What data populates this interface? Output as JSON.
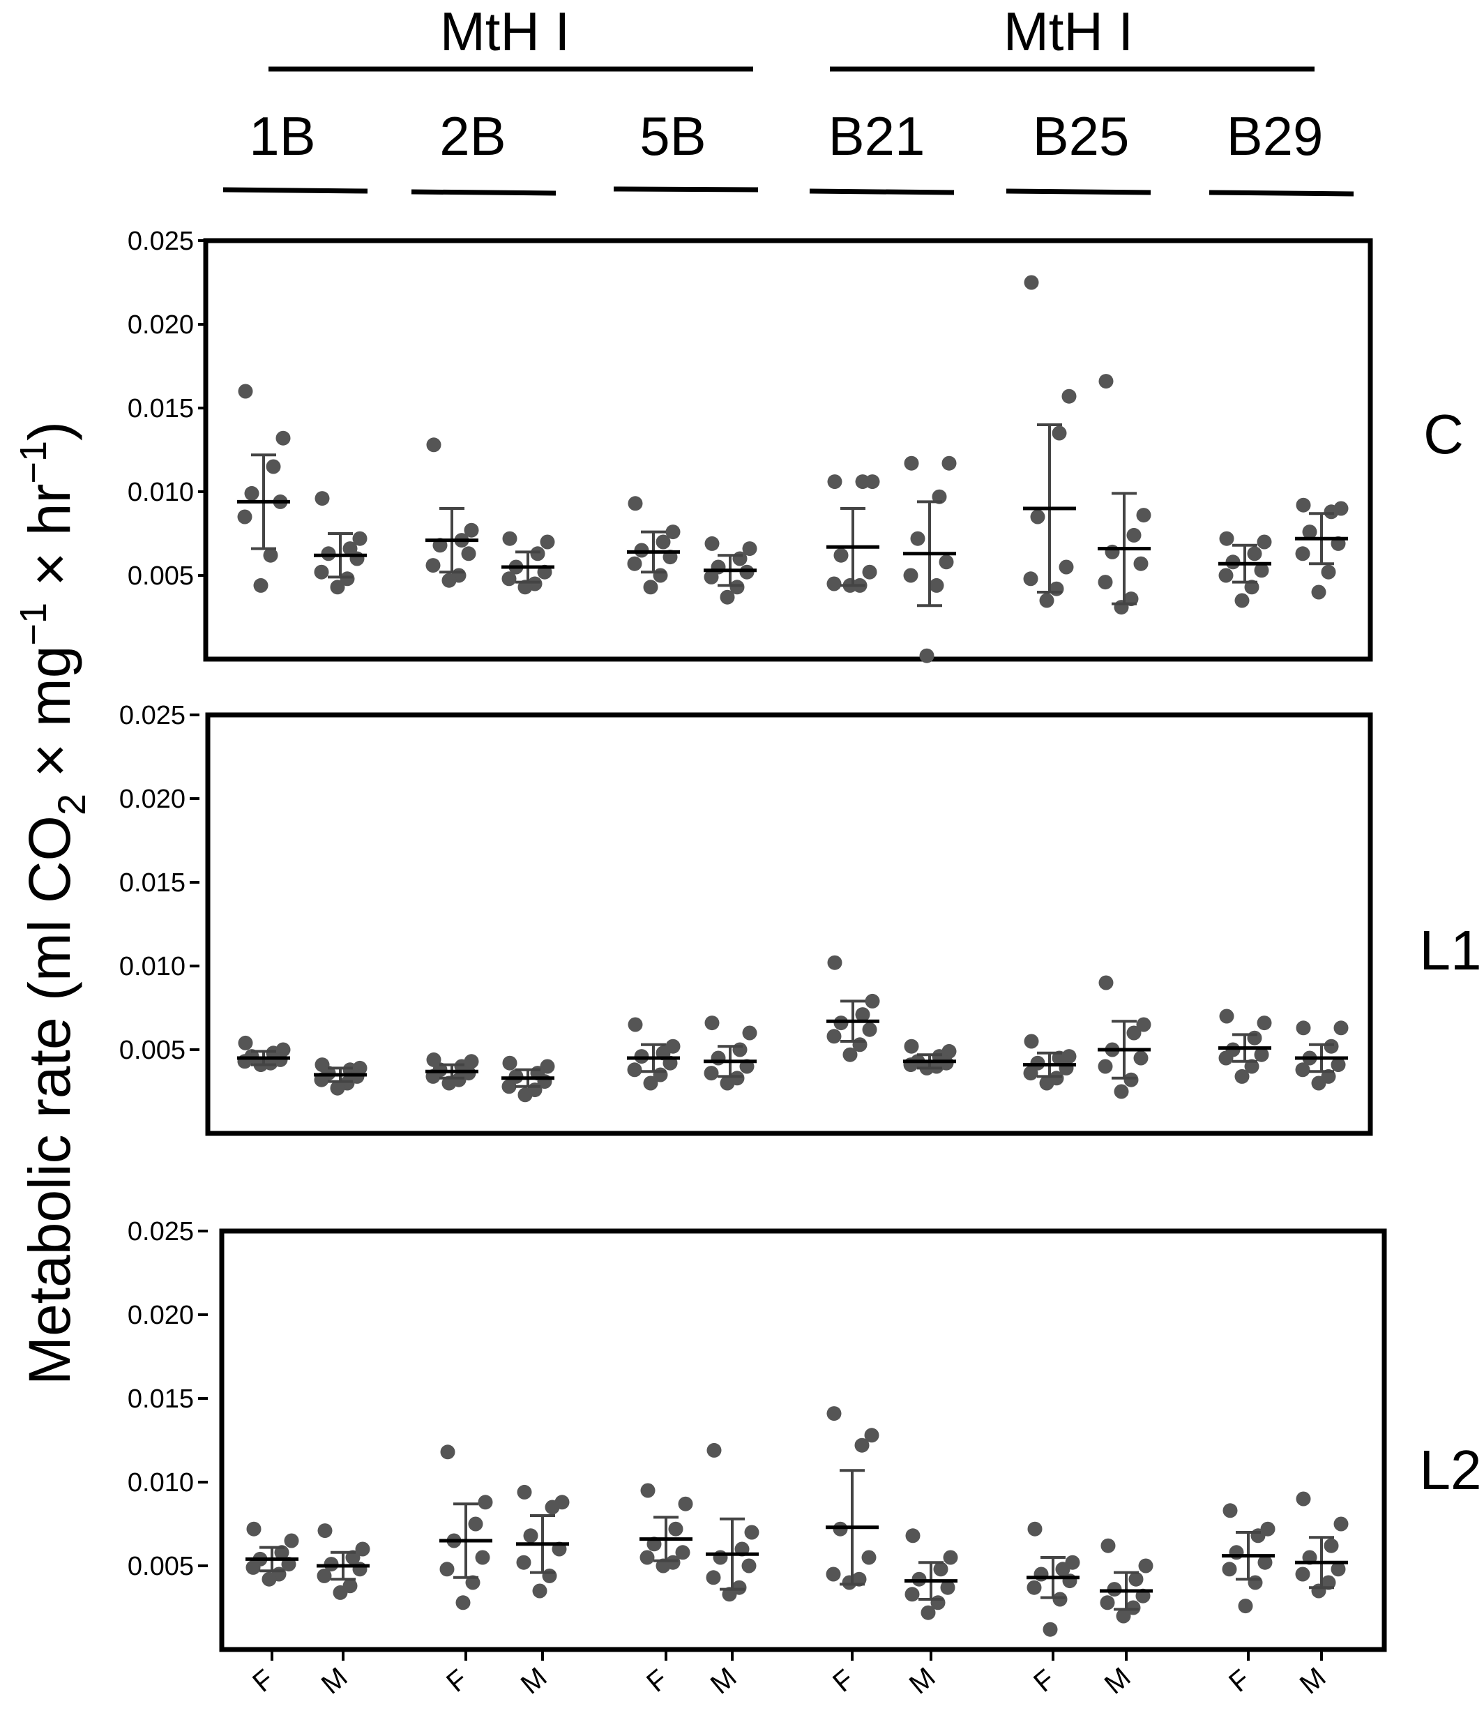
{
  "figure": {
    "ylabel_text": "Metabolic rate (ml CO",
    "ylabel_sub2": "2",
    "ylabel_mid": " × mg",
    "ylabel_sup1": "−1",
    "ylabel_hr": " × hr",
    "ylabel_sup2": "−1",
    "ylabel_close": ")"
  },
  "header": {
    "groups": [
      {
        "label": "MtH I",
        "lines": [
          "1B",
          "2B",
          "5B"
        ]
      },
      {
        "label": "MtH I",
        "lines": [
          "B21",
          "B25",
          "B29"
        ]
      }
    ]
  },
  "colors": {
    "points": "#555555",
    "bars": "#444444",
    "frame": "#000000"
  },
  "chart_data": [
    {
      "type": "scatter",
      "panel_label": "C",
      "ylim": [
        0,
        0.025
      ],
      "yticks": [
        "0.005",
        "0.010",
        "0.015",
        "0.020",
        "0.025"
      ],
      "x_categories": [
        "F",
        "M",
        "F",
        "M",
        "F",
        "M",
        "F",
        "M",
        "F",
        "M",
        "F",
        "M"
      ],
      "series": [
        {
          "line": "1B",
          "sex": "F",
          "mean": 0.0094,
          "sd_low": 0.0066,
          "sd_high": 0.0122,
          "values": [
            0.016,
            0.0132,
            0.0115,
            0.0099,
            0.0094,
            0.0085,
            0.0062,
            0.0044
          ]
        },
        {
          "line": "1B",
          "sex": "M",
          "mean": 0.0062,
          "sd_low": 0.0049,
          "sd_high": 0.0075,
          "values": [
            0.0096,
            0.0072,
            0.0066,
            0.0063,
            0.006,
            0.0052,
            0.0048,
            0.0043
          ]
        },
        {
          "line": "2B",
          "sex": "F",
          "mean": 0.0071,
          "sd_low": 0.0052,
          "sd_high": 0.009,
          "values": [
            0.0128,
            0.0077,
            0.0071,
            0.0068,
            0.0063,
            0.0056,
            0.005,
            0.0047
          ]
        },
        {
          "line": "2B",
          "sex": "M",
          "mean": 0.0055,
          "sd_low": 0.0046,
          "sd_high": 0.0064,
          "values": [
            0.0072,
            0.007,
            0.0063,
            0.0055,
            0.0052,
            0.0048,
            0.0045,
            0.0043
          ]
        },
        {
          "line": "5B",
          "sex": "F",
          "mean": 0.0064,
          "sd_low": 0.0052,
          "sd_high": 0.0076,
          "values": [
            0.0093,
            0.0076,
            0.007,
            0.0065,
            0.0061,
            0.0057,
            0.005,
            0.0043
          ]
        },
        {
          "line": "5B",
          "sex": "M",
          "mean": 0.0053,
          "sd_low": 0.0044,
          "sd_high": 0.0062,
          "values": [
            0.0069,
            0.0066,
            0.006,
            0.0055,
            0.0052,
            0.0049,
            0.0043,
            0.0037
          ]
        },
        {
          "line": "B21",
          "sex": "F",
          "mean": 0.0067,
          "sd_low": 0.0044,
          "sd_high": 0.009,
          "values": [
            0.0106,
            0.0106,
            0.0106,
            0.0062,
            0.0052,
            0.0045,
            0.0044,
            0.0044
          ]
        },
        {
          "line": "B21",
          "sex": "M",
          "mean": 0.0063,
          "sd_low": 0.0032,
          "sd_high": 0.0094,
          "values": [
            0.0117,
            0.0117,
            0.0097,
            0.0072,
            0.0058,
            0.005,
            0.0044,
            0.0002
          ]
        },
        {
          "line": "B25",
          "sex": "F",
          "mean": 0.009,
          "sd_low": 0.004,
          "sd_high": 0.014,
          "values": [
            0.0225,
            0.0157,
            0.0135,
            0.0085,
            0.0055,
            0.0048,
            0.0042,
            0.0035
          ]
        },
        {
          "line": "B25",
          "sex": "M",
          "mean": 0.0066,
          "sd_low": 0.0033,
          "sd_high": 0.0099,
          "values": [
            0.0166,
            0.0086,
            0.0074,
            0.0064,
            0.0057,
            0.0046,
            0.0036,
            0.0031
          ]
        },
        {
          "line": "B29",
          "sex": "F",
          "mean": 0.0057,
          "sd_low": 0.0046,
          "sd_high": 0.0068,
          "values": [
            0.0072,
            0.007,
            0.0063,
            0.0058,
            0.0053,
            0.005,
            0.0043,
            0.0035
          ]
        },
        {
          "line": "B29",
          "sex": "M",
          "mean": 0.0072,
          "sd_low": 0.0057,
          "sd_high": 0.0087,
          "values": [
            0.0092,
            0.009,
            0.0088,
            0.0076,
            0.0069,
            0.0063,
            0.0052,
            0.004
          ]
        }
      ]
    },
    {
      "type": "scatter",
      "panel_label": "L1",
      "ylim": [
        0,
        0.025
      ],
      "yticks": [
        "0.005",
        "0.010",
        "0.015",
        "0.020",
        "0.025"
      ],
      "x_categories": [
        "F",
        "M",
        "F",
        "M",
        "F",
        "M",
        "F",
        "M",
        "F",
        "M",
        "F",
        "M"
      ],
      "series": [
        {
          "line": "1B",
          "sex": "F",
          "mean": 0.0045,
          "sd_low": 0.0041,
          "sd_high": 0.0049,
          "values": [
            0.0054,
            0.005,
            0.0048,
            0.0046,
            0.0044,
            0.0043,
            0.0042,
            0.0041
          ]
        },
        {
          "line": "1B",
          "sex": "M",
          "mean": 0.0035,
          "sd_low": 0.0031,
          "sd_high": 0.0039,
          "values": [
            0.0041,
            0.0039,
            0.0038,
            0.0036,
            0.0034,
            0.0032,
            0.003,
            0.0027
          ]
        },
        {
          "line": "2B",
          "sex": "F",
          "mean": 0.0037,
          "sd_low": 0.0033,
          "sd_high": 0.0041,
          "values": [
            0.0044,
            0.0043,
            0.004,
            0.0038,
            0.0036,
            0.0034,
            0.0032,
            0.003
          ]
        },
        {
          "line": "2B",
          "sex": "M",
          "mean": 0.0033,
          "sd_low": 0.0028,
          "sd_high": 0.0038,
          "values": [
            0.0042,
            0.004,
            0.0036,
            0.0034,
            0.0031,
            0.0028,
            0.0026,
            0.0023
          ]
        },
        {
          "line": "5B",
          "sex": "F",
          "mean": 0.0045,
          "sd_low": 0.0037,
          "sd_high": 0.0053,
          "values": [
            0.0065,
            0.0052,
            0.0048,
            0.0046,
            0.0042,
            0.0038,
            0.0035,
            0.003
          ]
        },
        {
          "line": "5B",
          "sex": "M",
          "mean": 0.0043,
          "sd_low": 0.0034,
          "sd_high": 0.0052,
          "values": [
            0.0066,
            0.006,
            0.005,
            0.0045,
            0.004,
            0.0036,
            0.0033,
            0.003
          ]
        },
        {
          "line": "B21",
          "sex": "F",
          "mean": 0.0067,
          "sd_low": 0.0055,
          "sd_high": 0.0079,
          "values": [
            0.0102,
            0.0079,
            0.0071,
            0.0066,
            0.0062,
            0.0058,
            0.0053,
            0.0047
          ]
        },
        {
          "line": "B21",
          "sex": "M",
          "mean": 0.0043,
          "sd_low": 0.0039,
          "sd_high": 0.0047,
          "values": [
            0.0052,
            0.0049,
            0.0046,
            0.0043,
            0.0042,
            0.0041,
            0.004,
            0.0039
          ]
        },
        {
          "line": "B25",
          "sex": "F",
          "mean": 0.0041,
          "sd_low": 0.0034,
          "sd_high": 0.0048,
          "values": [
            0.0055,
            0.0046,
            0.0045,
            0.0042,
            0.0039,
            0.0036,
            0.0033,
            0.003
          ]
        },
        {
          "line": "B25",
          "sex": "M",
          "mean": 0.005,
          "sd_low": 0.0033,
          "sd_high": 0.0067,
          "values": [
            0.009,
            0.0065,
            0.006,
            0.005,
            0.0045,
            0.004,
            0.0032,
            0.0025
          ]
        },
        {
          "line": "B29",
          "sex": "F",
          "mean": 0.0051,
          "sd_low": 0.0043,
          "sd_high": 0.0059,
          "values": [
            0.007,
            0.0066,
            0.0057,
            0.005,
            0.0047,
            0.0045,
            0.004,
            0.0034
          ]
        },
        {
          "line": "B29",
          "sex": "M",
          "mean": 0.0045,
          "sd_low": 0.0037,
          "sd_high": 0.0053,
          "values": [
            0.0063,
            0.0063,
            0.0052,
            0.0045,
            0.0041,
            0.0038,
            0.0034,
            0.003
          ]
        }
      ]
    },
    {
      "type": "scatter",
      "panel_label": "L2",
      "ylim": [
        0,
        0.025
      ],
      "yticks": [
        "0.005",
        "0.010",
        "0.015",
        "0.020",
        "0.025"
      ],
      "x_categories": [
        "F",
        "M",
        "F",
        "M",
        "F",
        "M",
        "F",
        "M",
        "F",
        "M",
        "F",
        "M"
      ],
      "series": [
        {
          "line": "1B",
          "sex": "F",
          "mean": 0.0054,
          "sd_low": 0.0047,
          "sd_high": 0.0061,
          "values": [
            0.0072,
            0.0065,
            0.0058,
            0.0054,
            0.0051,
            0.0049,
            0.0045,
            0.0042
          ]
        },
        {
          "line": "1B",
          "sex": "M",
          "mean": 0.005,
          "sd_low": 0.0042,
          "sd_high": 0.0058,
          "values": [
            0.0071,
            0.006,
            0.0055,
            0.0051,
            0.0048,
            0.0044,
            0.0038,
            0.0034
          ]
        },
        {
          "line": "2B",
          "sex": "F",
          "mean": 0.0065,
          "sd_low": 0.0043,
          "sd_high": 0.0087,
          "values": [
            0.0118,
            0.0088,
            0.0075,
            0.0065,
            0.0055,
            0.0048,
            0.004,
            0.0028
          ]
        },
        {
          "line": "2B",
          "sex": "M",
          "mean": 0.0063,
          "sd_low": 0.0046,
          "sd_high": 0.008,
          "values": [
            0.0094,
            0.0088,
            0.0085,
            0.0068,
            0.006,
            0.0052,
            0.0044,
            0.0035
          ]
        },
        {
          "line": "5B",
          "sex": "F",
          "mean": 0.0066,
          "sd_low": 0.0053,
          "sd_high": 0.0079,
          "values": [
            0.0095,
            0.0087,
            0.0072,
            0.0063,
            0.0058,
            0.0055,
            0.0052,
            0.005
          ]
        },
        {
          "line": "5B",
          "sex": "M",
          "mean": 0.0057,
          "sd_low": 0.0036,
          "sd_high": 0.0078,
          "values": [
            0.0119,
            0.007,
            0.006,
            0.0055,
            0.005,
            0.0043,
            0.0037,
            0.0033
          ]
        },
        {
          "line": "B21",
          "sex": "F",
          "mean": 0.0073,
          "sd_low": 0.0039,
          "sd_high": 0.0107,
          "values": [
            0.0141,
            0.0128,
            0.0122,
            0.0072,
            0.0055,
            0.0045,
            0.0042,
            0.004
          ]
        },
        {
          "line": "B21",
          "sex": "M",
          "mean": 0.0041,
          "sd_low": 0.003,
          "sd_high": 0.0052,
          "values": [
            0.0068,
            0.0055,
            0.0048,
            0.0042,
            0.0037,
            0.0033,
            0.0028,
            0.0022
          ]
        },
        {
          "line": "B25",
          "sex": "F",
          "mean": 0.0043,
          "sd_low": 0.0031,
          "sd_high": 0.0055,
          "values": [
            0.0072,
            0.0052,
            0.0048,
            0.0045,
            0.0041,
            0.0037,
            0.003,
            0.0012
          ]
        },
        {
          "line": "B25",
          "sex": "M",
          "mean": 0.0035,
          "sd_low": 0.0024,
          "sd_high": 0.0046,
          "values": [
            0.0062,
            0.005,
            0.0042,
            0.0036,
            0.0032,
            0.0028,
            0.0025,
            0.002
          ]
        },
        {
          "line": "B29",
          "sex": "F",
          "mean": 0.0056,
          "sd_low": 0.0042,
          "sd_high": 0.007,
          "values": [
            0.0083,
            0.0072,
            0.0068,
            0.0058,
            0.0052,
            0.0048,
            0.004,
            0.0026
          ]
        },
        {
          "line": "B29",
          "sex": "M",
          "mean": 0.0052,
          "sd_low": 0.0037,
          "sd_high": 0.0067,
          "values": [
            0.009,
            0.0075,
            0.0062,
            0.0055,
            0.0048,
            0.0045,
            0.004,
            0.0035
          ]
        }
      ]
    }
  ]
}
